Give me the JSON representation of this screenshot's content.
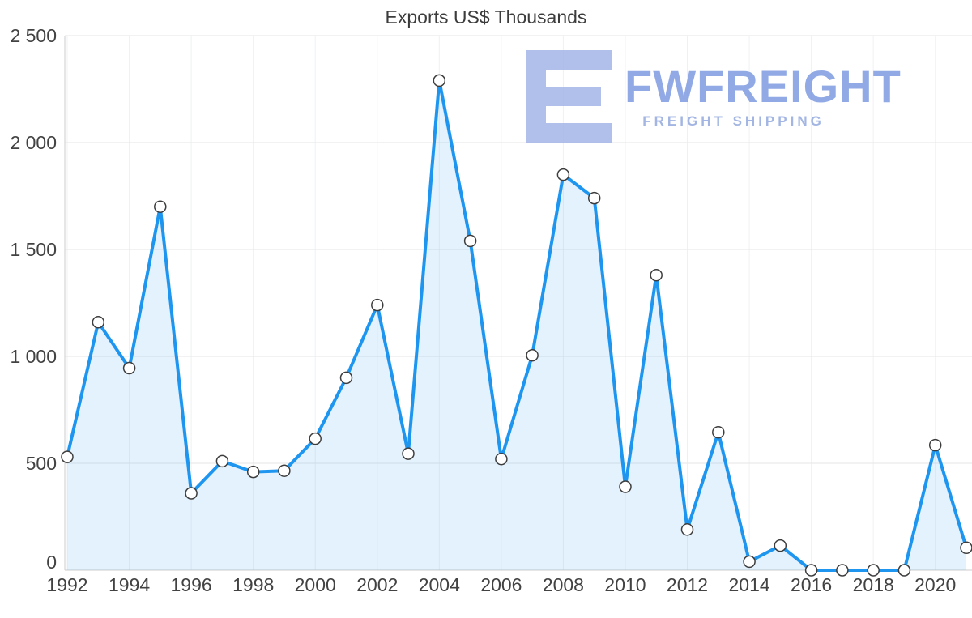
{
  "chart_data": {
    "type": "area",
    "title": "Exports US$ Thousands",
    "x": [
      1992,
      1993,
      1994,
      1995,
      1996,
      1997,
      1998,
      1999,
      2000,
      2001,
      2002,
      2003,
      2004,
      2005,
      2006,
      2007,
      2008,
      2009,
      2010,
      2011,
      2012,
      2013,
      2014,
      2015,
      2016,
      2017,
      2018,
      2019,
      2020,
      2021
    ],
    "values": [
      530,
      1160,
      945,
      1700,
      360,
      510,
      460,
      465,
      615,
      900,
      1240,
      545,
      2290,
      1540,
      520,
      1005,
      1850,
      1740,
      390,
      1380,
      190,
      645,
      40,
      115,
      0,
      0,
      0,
      0,
      585,
      105
    ],
    "ylim": [
      0,
      2500
    ],
    "y_ticks": [
      0,
      500,
      1000,
      1500,
      2000,
      2500
    ],
    "y_tick_labels": [
      "0",
      "500",
      "1 000",
      "1 500",
      "2 000",
      "2 500"
    ],
    "x_ticks": [
      1992,
      1994,
      1996,
      1998,
      2000,
      2002,
      2004,
      2006,
      2008,
      2010,
      2012,
      2014,
      2016,
      2018,
      2020
    ],
    "grid": true,
    "legend": false,
    "colors": {
      "line": "#1e96f0",
      "area": "rgba(30,150,240,0.12)",
      "marker_fill": "#ffffff",
      "marker_stroke": "#3d3d3d",
      "grid": "#e6e6e6",
      "vgrid": "#eef1f4",
      "axis": "#cccccc",
      "text": "#424242",
      "title": "#3c3c3c"
    }
  },
  "watermark": {
    "brand": "FWFREIGHT",
    "tagline": "FREIGHT SHIPPING",
    "color": "#a3b6e8"
  }
}
